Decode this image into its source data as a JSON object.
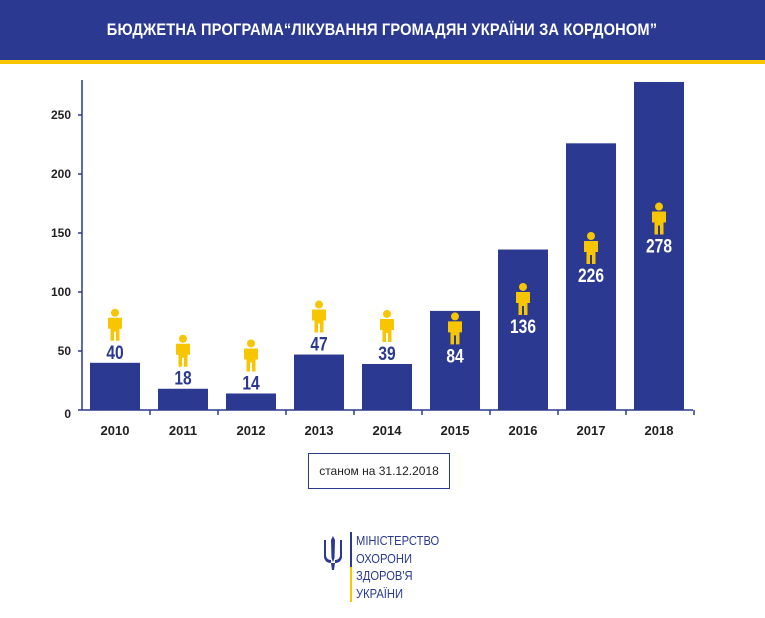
{
  "header": {
    "title": "БЮДЖЕТНА ПРОГРАМА“ЛІКУВАННЯ ГРОМАДЯН УКРАЇНИ  ЗА КОРДОНОМ”"
  },
  "colors": {
    "primary": "#2b3990",
    "accent": "#f7c600",
    "axis": "#2b3990",
    "label_dark": "#2b3990",
    "label_light": "#ffffff"
  },
  "chart_data": {
    "type": "bar",
    "categories": [
      "2010",
      "2011",
      "2012",
      "2013",
      "2014",
      "2015",
      "2016",
      "2017",
      "2018"
    ],
    "values": [
      40,
      18,
      14,
      47,
      39,
      84,
      136,
      226,
      278
    ],
    "data_labels": [
      "40",
      "18",
      "14",
      "47",
      "39",
      "84",
      "136",
      "226",
      "278"
    ],
    "yticks": [
      "0",
      "50",
      "100",
      "150",
      "200",
      "250"
    ],
    "ylim": [
      0,
      280
    ],
    "grid": false,
    "legend": "none",
    "icon": "person-icon",
    "title": "БЮДЖЕТНА ПРОГРАМА“ЛІКУВАННЯ ГРОМАДЯН УКРАЇНИ  ЗА КОРДОНОМ”"
  },
  "note": {
    "date": "станом на 31.12.2018"
  },
  "ministry": {
    "icon": "trident-icon",
    "lines": [
      "МІНІСТЕРСТВО",
      "ОХОРОНИ",
      "ЗДОРОВ'Я",
      "УКРАЇНИ"
    ]
  }
}
